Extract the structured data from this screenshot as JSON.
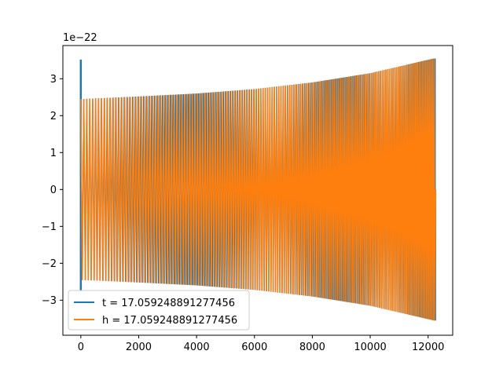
{
  "chart_data": {
    "type": "line",
    "title": "",
    "xlabel": "",
    "ylabel": "",
    "y_offset_label": "1e−22",
    "xlim": [
      -620,
      12850
    ],
    "ylim": [
      -3.95,
      3.9
    ],
    "x_ticks": [
      0,
      2000,
      4000,
      6000,
      8000,
      10000,
      12000
    ],
    "x_tick_labels": [
      "0",
      "2000",
      "4000",
      "6000",
      "8000",
      "10000",
      "12000"
    ],
    "y_ticks": [
      -3,
      -2,
      -1,
      0,
      1,
      2,
      3
    ],
    "y_tick_labels": [
      "−3",
      "−2",
      "−1",
      "0",
      "1",
      "2",
      "3"
    ],
    "grid": false,
    "legend_position": "lower-left",
    "x_range": [
      0,
      12260
    ],
    "envelope": [
      {
        "x": 0,
        "amp": 2.45
      },
      {
        "x": 2000,
        "amp": 2.52
      },
      {
        "x": 4000,
        "amp": 2.6
      },
      {
        "x": 6000,
        "amp": 2.72
      },
      {
        "x": 8000,
        "amp": 2.9
      },
      {
        "x": 10000,
        "amp": 3.15
      },
      {
        "x": 12200,
        "amp": 3.55
      }
    ],
    "series": [
      {
        "name": "t = 17.059248891277456",
        "color": "#1f77b4",
        "spikes": [
          {
            "x": 0,
            "y": 3.52
          },
          {
            "x": 0,
            "y": -2.75
          },
          {
            "x": 12230,
            "y": 3.55
          },
          {
            "x": 12230,
            "y": -3.52
          }
        ]
      },
      {
        "name": "h = 17.059248891277456",
        "color": "#ff7f0e"
      }
    ]
  }
}
